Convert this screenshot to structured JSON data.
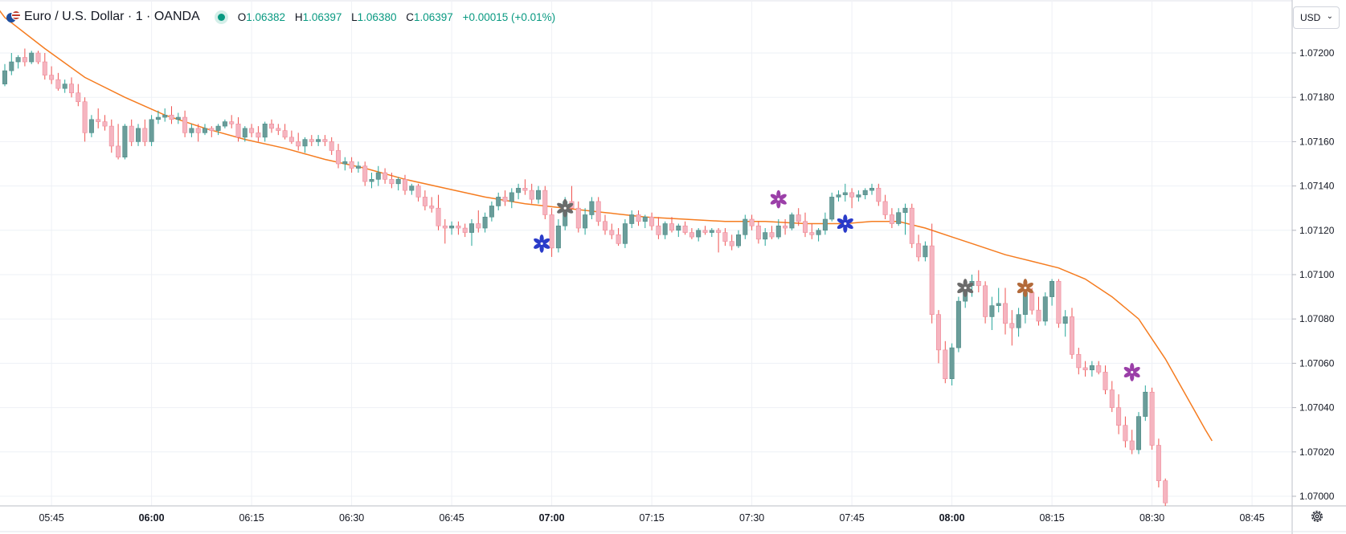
{
  "header": {
    "symbol": "Euro / U.S. Dollar · 1 · OANDA",
    "ohlc": {
      "open_label": "O",
      "open": "1.06382",
      "high_label": "H",
      "high": "1.06397",
      "low_label": "L",
      "low": "1.06380",
      "close_label": "C",
      "close": "1.06397",
      "change": "+0.00015 (+0.01%)"
    },
    "flag_icon": "eur-usd-flag-icon",
    "status_icon": "market-open-dot-icon"
  },
  "currency_selector": {
    "label": "USD",
    "icon": "chevron-down-icon"
  },
  "settings_icon": "gear-icon",
  "colors": {
    "up": "#6a9d9a",
    "up_wick": "#26a69a",
    "down": "#f5b5c0",
    "down_wick": "#ef5350",
    "ma_line": "#f57c20",
    "grid": "#eef1f6",
    "axis_text": "#131722"
  },
  "chart_data": {
    "type": "candlestick",
    "x_start": "05:38",
    "interval_minutes": 1,
    "y_ticks": [
      "1.07200",
      "1.07180",
      "1.07160",
      "1.07140",
      "1.07120",
      "1.07100",
      "1.07080",
      "1.07060",
      "1.07040",
      "1.07020",
      "1.07000"
    ],
    "x_ticks": [
      {
        "label": "05:45",
        "bold": false
      },
      {
        "label": "06:00",
        "bold": true
      },
      {
        "label": "06:15",
        "bold": false
      },
      {
        "label": "06:30",
        "bold": false
      },
      {
        "label": "06:45",
        "bold": false
      },
      {
        "label": "07:00",
        "bold": true
      },
      {
        "label": "07:15",
        "bold": false
      },
      {
        "label": "07:30",
        "bold": false
      },
      {
        "label": "07:45",
        "bold": false
      },
      {
        "label": "08:00",
        "bold": true
      },
      {
        "label": "08:15",
        "bold": false
      },
      {
        "label": "08:30",
        "bold": false
      },
      {
        "label": "08:45",
        "bold": false
      }
    ],
    "ylim": [
      1.06995,
      1.07215
    ],
    "candles": [
      [
        1.07186,
        1.07195,
        1.07185,
        1.07192
      ],
      [
        1.07192,
        1.072,
        1.0719,
        1.07196
      ],
      [
        1.07196,
        1.07199,
        1.07193,
        1.07198
      ],
      [
        1.07198,
        1.07202,
        1.07194,
        1.07196
      ],
      [
        1.07196,
        1.07201,
        1.07195,
        1.072
      ],
      [
        1.072,
        1.07201,
        1.07195,
        1.07196
      ],
      [
        1.07196,
        1.072,
        1.07188,
        1.0719
      ],
      [
        1.0719,
        1.07194,
        1.07186,
        1.07188
      ],
      [
        1.07188,
        1.07191,
        1.07183,
        1.07184
      ],
      [
        1.07184,
        1.07188,
        1.07182,
        1.07186
      ],
      [
        1.07186,
        1.07189,
        1.0718,
        1.07182
      ],
      [
        1.07182,
        1.07186,
        1.07176,
        1.07178
      ],
      [
        1.07178,
        1.0718,
        1.0716,
        1.07164
      ],
      [
        1.07164,
        1.07172,
        1.07162,
        1.0717
      ],
      [
        1.0717,
        1.07175,
        1.07166,
        1.07169
      ],
      [
        1.07169,
        1.07172,
        1.07165,
        1.07167
      ],
      [
        1.07167,
        1.0717,
        1.07155,
        1.07158
      ],
      [
        1.07158,
        1.07168,
        1.07152,
        1.07153
      ],
      [
        1.07153,
        1.07168,
        1.07152,
        1.07167
      ],
      [
        1.07167,
        1.0717,
        1.07158,
        1.0716
      ],
      [
        1.0716,
        1.07168,
        1.07158,
        1.07166
      ],
      [
        1.07166,
        1.0717,
        1.07158,
        1.0716
      ],
      [
        1.0716,
        1.07172,
        1.07158,
        1.0717
      ],
      [
        1.0717,
        1.07174,
        1.07168,
        1.07171
      ],
      [
        1.07171,
        1.07175,
        1.07169,
        1.07172
      ],
      [
        1.07172,
        1.07176,
        1.07168,
        1.0717
      ],
      [
        1.0717,
        1.07173,
        1.07168,
        1.07171
      ],
      [
        1.07171,
        1.07174,
        1.07162,
        1.07164
      ],
      [
        1.07164,
        1.07168,
        1.07162,
        1.07166
      ],
      [
        1.07166,
        1.07168,
        1.0716,
        1.07164
      ],
      [
        1.07164,
        1.07168,
        1.07163,
        1.07166
      ],
      [
        1.07166,
        1.07167,
        1.07162,
        1.07165
      ],
      [
        1.07165,
        1.07168,
        1.07163,
        1.07167
      ],
      [
        1.07167,
        1.0717,
        1.07166,
        1.07169
      ],
      [
        1.07169,
        1.07172,
        1.07166,
        1.07168
      ],
      [
        1.07168,
        1.07171,
        1.0716,
        1.07162
      ],
      [
        1.07162,
        1.07167,
        1.0716,
        1.07166
      ],
      [
        1.07166,
        1.07168,
        1.07162,
        1.07164
      ],
      [
        1.07164,
        1.07167,
        1.0716,
        1.07162
      ],
      [
        1.07162,
        1.07169,
        1.0716,
        1.07168
      ],
      [
        1.07168,
        1.0717,
        1.07164,
        1.07166
      ],
      [
        1.07166,
        1.07168,
        1.07163,
        1.07165
      ],
      [
        1.07165,
        1.07168,
        1.07161,
        1.07162
      ],
      [
        1.07162,
        1.07165,
        1.07159,
        1.0716
      ],
      [
        1.0716,
        1.07164,
        1.07156,
        1.07158
      ],
      [
        1.07158,
        1.07162,
        1.07155,
        1.07161
      ],
      [
        1.07161,
        1.07163,
        1.07158,
        1.0716
      ],
      [
        1.0716,
        1.07163,
        1.07158,
        1.07161
      ],
      [
        1.07161,
        1.07163,
        1.07158,
        1.0716
      ],
      [
        1.0716,
        1.07162,
        1.07154,
        1.07156
      ],
      [
        1.07156,
        1.07159,
        1.07148,
        1.0715
      ],
      [
        1.0715,
        1.07153,
        1.07147,
        1.07151
      ],
      [
        1.07151,
        1.07153,
        1.07146,
        1.07148
      ],
      [
        1.07148,
        1.07151,
        1.07146,
        1.07149
      ],
      [
        1.07149,
        1.07151,
        1.0714,
        1.07142
      ],
      [
        1.07142,
        1.07146,
        1.07139,
        1.07143
      ],
      [
        1.07143,
        1.07149,
        1.0714,
        1.07146
      ],
      [
        1.07146,
        1.07148,
        1.07141,
        1.07143
      ],
      [
        1.07143,
        1.07146,
        1.07139,
        1.07141
      ],
      [
        1.07141,
        1.07144,
        1.07138,
        1.07143
      ],
      [
        1.07143,
        1.07145,
        1.07136,
        1.07138
      ],
      [
        1.07138,
        1.07141,
        1.07136,
        1.0714
      ],
      [
        1.0714,
        1.07141,
        1.07133,
        1.07135
      ],
      [
        1.07135,
        1.07138,
        1.07129,
        1.07131
      ],
      [
        1.07131,
        1.07135,
        1.07128,
        1.0713
      ],
      [
        1.0713,
        1.07136,
        1.0712,
        1.07122
      ],
      [
        1.07122,
        1.07125,
        1.07114,
        1.07121
      ],
      [
        1.07121,
        1.07124,
        1.07118,
        1.07122
      ],
      [
        1.07122,
        1.07124,
        1.07118,
        1.07121
      ],
      [
        1.07121,
        1.07123,
        1.07117,
        1.07119
      ],
      [
        1.07119,
        1.07125,
        1.07113,
        1.07123
      ],
      [
        1.07123,
        1.07129,
        1.07119,
        1.07121
      ],
      [
        1.07121,
        1.07128,
        1.07119,
        1.07126
      ],
      [
        1.07126,
        1.07133,
        1.07124,
        1.07131
      ],
      [
        1.07131,
        1.07137,
        1.07129,
        1.07135
      ],
      [
        1.07135,
        1.07138,
        1.07131,
        1.07133
      ],
      [
        1.07133,
        1.07139,
        1.0713,
        1.07137
      ],
      [
        1.07137,
        1.07141,
        1.07134,
        1.07139
      ],
      [
        1.07139,
        1.07143,
        1.07136,
        1.07138
      ],
      [
        1.07138,
        1.07141,
        1.07132,
        1.07134
      ],
      [
        1.07134,
        1.0714,
        1.07132,
        1.07138
      ],
      [
        1.07138,
        1.0714,
        1.07125,
        1.07127
      ],
      [
        1.07127,
        1.0713,
        1.07108,
        1.07112
      ],
      [
        1.07112,
        1.07125,
        1.0711,
        1.07122
      ],
      [
        1.07122,
        1.07135,
        1.0712,
        1.07133
      ],
      [
        1.07133,
        1.0714,
        1.07128,
        1.0713
      ],
      [
        1.0713,
        1.07133,
        1.07119,
        1.07121
      ],
      [
        1.07121,
        1.0713,
        1.07118,
        1.07127
      ],
      [
        1.07127,
        1.07135,
        1.07125,
        1.07133
      ],
      [
        1.07133,
        1.07135,
        1.07122,
        1.07124
      ],
      [
        1.07124,
        1.07127,
        1.07118,
        1.0712
      ],
      [
        1.0712,
        1.07123,
        1.07116,
        1.07118
      ],
      [
        1.07118,
        1.07121,
        1.07113,
        1.07114
      ],
      [
        1.07114,
        1.07125,
        1.07112,
        1.07123
      ],
      [
        1.07123,
        1.07129,
        1.07121,
        1.07127
      ],
      [
        1.07127,
        1.07129,
        1.07122,
        1.07124
      ],
      [
        1.07124,
        1.07127,
        1.07121,
        1.07126
      ],
      [
        1.07126,
        1.07128,
        1.0712,
        1.07122
      ],
      [
        1.07122,
        1.07126,
        1.07116,
        1.07118
      ],
      [
        1.07118,
        1.07124,
        1.07116,
        1.07123
      ],
      [
        1.07123,
        1.07126,
        1.07119,
        1.0712
      ],
      [
        1.0712,
        1.07123,
        1.07117,
        1.07122
      ],
      [
        1.07122,
        1.07124,
        1.07118,
        1.07119
      ],
      [
        1.07119,
        1.07121,
        1.07116,
        1.07117
      ],
      [
        1.07117,
        1.07121,
        1.07115,
        1.0712
      ],
      [
        1.0712,
        1.07122,
        1.07118,
        1.07119
      ],
      [
        1.07119,
        1.07121,
        1.07117,
        1.0712
      ],
      [
        1.0712,
        1.07121,
        1.0711,
        1.07119
      ],
      [
        1.07119,
        1.07121,
        1.07113,
        1.07115
      ],
      [
        1.07115,
        1.07118,
        1.07111,
        1.07113
      ],
      [
        1.07113,
        1.0712,
        1.07112,
        1.07118
      ],
      [
        1.07118,
        1.07127,
        1.07116,
        1.07125
      ],
      [
        1.07125,
        1.07127,
        1.0712,
        1.07122
      ],
      [
        1.07122,
        1.07124,
        1.07114,
        1.07116
      ],
      [
        1.07116,
        1.07121,
        1.07113,
        1.07119
      ],
      [
        1.07119,
        1.07122,
        1.07116,
        1.07117
      ],
      [
        1.07117,
        1.07125,
        1.07116,
        1.07122
      ],
      [
        1.07122,
        1.07125,
        1.07118,
        1.07121
      ],
      [
        1.07121,
        1.07128,
        1.0712,
        1.07127
      ],
      [
        1.07127,
        1.0713,
        1.07122,
        1.07124
      ],
      [
        1.07124,
        1.07128,
        1.07117,
        1.07119
      ],
      [
        1.07119,
        1.07123,
        1.07116,
        1.07118
      ],
      [
        1.07118,
        1.07121,
        1.07115,
        1.0712
      ],
      [
        1.0712,
        1.07128,
        1.07118,
        1.07125
      ],
      [
        1.07125,
        1.07137,
        1.07124,
        1.07135
      ],
      [
        1.07135,
        1.07138,
        1.07133,
        1.07136
      ],
      [
        1.07136,
        1.07141,
        1.07133,
        1.07137
      ],
      [
        1.07137,
        1.07139,
        1.0713,
        1.07135
      ],
      [
        1.07135,
        1.07138,
        1.07133,
        1.07136
      ],
      [
        1.07136,
        1.07139,
        1.07134,
        1.07138
      ],
      [
        1.07138,
        1.07141,
        1.07136,
        1.07139
      ],
      [
        1.07139,
        1.07141,
        1.07131,
        1.07133
      ],
      [
        1.07133,
        1.07136,
        1.07125,
        1.07127
      ],
      [
        1.07127,
        1.0713,
        1.07121,
        1.07123
      ],
      [
        1.07123,
        1.0713,
        1.07122,
        1.07128
      ],
      [
        1.07128,
        1.07132,
        1.07118,
        1.0713
      ],
      [
        1.0713,
        1.07132,
        1.07112,
        1.07114
      ],
      [
        1.07114,
        1.07118,
        1.07106,
        1.07108
      ],
      [
        1.07108,
        1.07115,
        1.07106,
        1.07113
      ],
      [
        1.07113,
        1.07123,
        1.07078,
        1.07082
      ],
      [
        1.07082,
        1.07084,
        1.0706,
        1.07066
      ],
      [
        1.07066,
        1.0707,
        1.07051,
        1.07053
      ],
      [
        1.07053,
        1.07069,
        1.0705,
        1.07067
      ],
      [
        1.07067,
        1.0709,
        1.07065,
        1.07088
      ],
      [
        1.07088,
        1.07097,
        1.07085,
        1.07095
      ],
      [
        1.07095,
        1.071,
        1.0709,
        1.07097
      ],
      [
        1.07097,
        1.07102,
        1.07092,
        1.07095
      ],
      [
        1.07095,
        1.07097,
        1.07078,
        1.07081
      ],
      [
        1.07081,
        1.0709,
        1.07075,
        1.07086
      ],
      [
        1.07086,
        1.07094,
        1.07083,
        1.07087
      ],
      [
        1.07087,
        1.07094,
        1.07073,
        1.07078
      ],
      [
        1.07078,
        1.07084,
        1.07068,
        1.07076
      ],
      [
        1.07076,
        1.07085,
        1.07072,
        1.07082
      ],
      [
        1.07082,
        1.07094,
        1.07078,
        1.07092
      ],
      [
        1.07092,
        1.07094,
        1.07082,
        1.07084
      ],
      [
        1.07084,
        1.0709,
        1.07077,
        1.07079
      ],
      [
        1.07079,
        1.07092,
        1.07077,
        1.0709
      ],
      [
        1.0709,
        1.07098,
        1.07086,
        1.07097
      ],
      [
        1.07097,
        1.07098,
        1.07076,
        1.07078
      ],
      [
        1.07078,
        1.07084,
        1.07072,
        1.07081
      ],
      [
        1.07081,
        1.07085,
        1.07062,
        1.07064
      ],
      [
        1.07064,
        1.07067,
        1.07055,
        1.07058
      ],
      [
        1.07058,
        1.07061,
        1.07054,
        1.07057
      ],
      [
        1.07057,
        1.07061,
        1.07054,
        1.07059
      ],
      [
        1.07059,
        1.07061,
        1.07055,
        1.07056
      ],
      [
        1.07056,
        1.07059,
        1.07046,
        1.07048
      ],
      [
        1.07048,
        1.07052,
        1.07038,
        1.0704
      ],
      [
        1.0704,
        1.07046,
        1.07028,
        1.07032
      ],
      [
        1.07032,
        1.07036,
        1.07022,
        1.07025
      ],
      [
        1.07025,
        1.0703,
        1.07019,
        1.07021
      ],
      [
        1.07021,
        1.07038,
        1.07019,
        1.07036
      ],
      [
        1.07036,
        1.0705,
        1.07034,
        1.07047
      ],
      [
        1.07047,
        1.07049,
        1.07021,
        1.07023
      ],
      [
        1.07023,
        1.07026,
        1.07004,
        1.07007
      ],
      [
        1.07007,
        1.07008,
        1.06995,
        1.06997
      ]
    ],
    "ma_line": [
      [
        -1,
        1.0722
      ],
      [
        0,
        1.07216
      ],
      [
        6,
        1.07202
      ],
      [
        12,
        1.07189
      ],
      [
        18,
        1.0718
      ],
      [
        24,
        1.07172
      ],
      [
        30,
        1.07166
      ],
      [
        36,
        1.07161
      ],
      [
        42,
        1.07157
      ],
      [
        48,
        1.07152
      ],
      [
        54,
        1.07148
      ],
      [
        60,
        1.07143
      ],
      [
        66,
        1.07139
      ],
      [
        72,
        1.07135
      ],
      [
        78,
        1.07132
      ],
      [
        84,
        1.0713
      ],
      [
        90,
        1.07128
      ],
      [
        96,
        1.07126
      ],
      [
        102,
        1.07125
      ],
      [
        108,
        1.07124
      ],
      [
        114,
        1.07124
      ],
      [
        120,
        1.07123
      ],
      [
        126,
        1.07123
      ],
      [
        130,
        1.07124
      ],
      [
        134,
        1.07124
      ],
      [
        138,
        1.07121
      ],
      [
        142,
        1.07117
      ],
      [
        146,
        1.07113
      ],
      [
        150,
        1.07109
      ],
      [
        154,
        1.07106
      ],
      [
        158,
        1.07103
      ],
      [
        162,
        1.07098
      ],
      [
        166,
        1.0709
      ],
      [
        170,
        1.0708
      ],
      [
        174,
        1.07062
      ],
      [
        177,
        1.07046
      ],
      [
        180,
        1.0703
      ],
      [
        181,
        1.07025
      ]
    ],
    "markers": [
      {
        "idx": 80.5,
        "price": 1.07114,
        "color": "#2a3bc9",
        "icon": "asterisk-icon"
      },
      {
        "idx": 84,
        "price": 1.0713,
        "color": "#6b6b6b",
        "icon": "asterisk-icon"
      },
      {
        "idx": 116,
        "price": 1.07134,
        "color": "#9b3fa8",
        "icon": "asterisk-icon"
      },
      {
        "idx": 126,
        "price": 1.07123,
        "color": "#2a3bc9",
        "icon": "asterisk-icon"
      },
      {
        "idx": 144,
        "price": 1.07094,
        "color": "#6b6b6b",
        "icon": "asterisk-icon"
      },
      {
        "idx": 153,
        "price": 1.07094,
        "color": "#b36a3a",
        "icon": "asterisk-icon"
      },
      {
        "idx": 169,
        "price": 1.07056,
        "color": "#9b3fa8",
        "icon": "asterisk-icon"
      }
    ]
  }
}
